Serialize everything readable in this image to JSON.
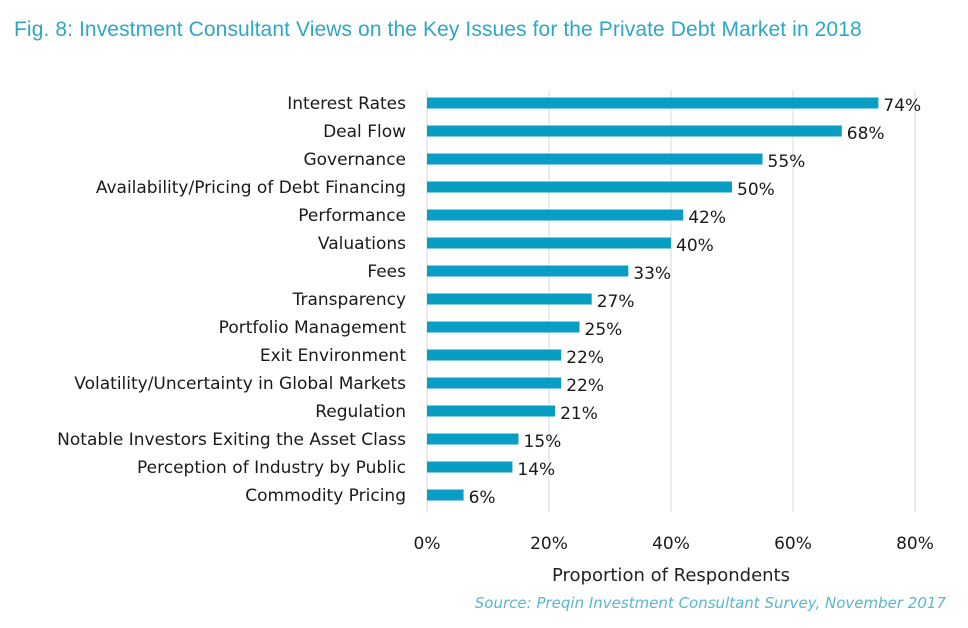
{
  "chart_data": {
    "type": "bar",
    "orientation": "horizontal",
    "title": "Fig. 8: Investment Consultant Views on the Key Issues for the Private Debt Market in 2018",
    "categories": [
      "Interest Rates",
      "Deal Flow",
      "Governance",
      "Availability/Pricing of Debt Financing",
      "Performance",
      "Valuations",
      "Fees",
      "Transparency",
      "Portfolio Management",
      "Exit Environment",
      "Volatility/Uncertainty in Global Markets",
      "Regulation",
      "Notable Investors Exiting the Asset Class",
      "Perception of Industry by Public",
      "Commodity Pricing"
    ],
    "values": [
      74,
      68,
      55,
      50,
      42,
      40,
      33,
      27,
      25,
      22,
      22,
      21,
      15,
      14,
      6
    ],
    "value_labels": [
      "74%",
      "68%",
      "55%",
      "50%",
      "42%",
      "40%",
      "33%",
      "27%",
      "25%",
      "22%",
      "22%",
      "21%",
      "15%",
      "14%",
      "6%"
    ],
    "xlabel": "Proportion of Respondents",
    "ylabel": "",
    "xlim": [
      0,
      80
    ],
    "xticks": [
      0,
      20,
      40,
      60,
      80
    ],
    "xtick_labels": [
      "0%",
      "20%",
      "40%",
      "60%",
      "80%"
    ],
    "grid": "vertical",
    "legend": "none",
    "bar_color": "#0a9dc4",
    "grid_color": "#d9d9d9",
    "source": "Source: Preqin Investment Consultant Survey, November 2017"
  }
}
